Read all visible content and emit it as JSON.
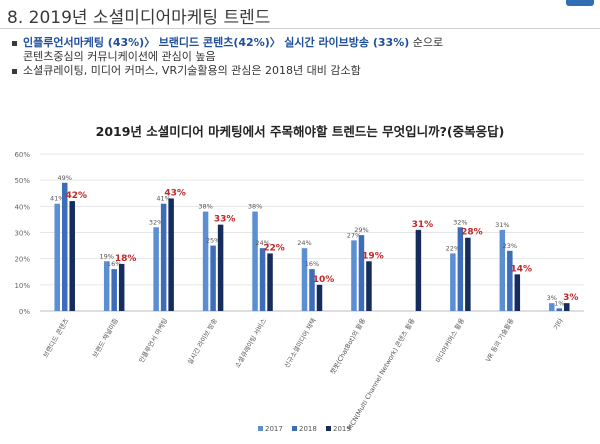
{
  "header": {
    "title": "8. 2019년 소셜미디어마케팅 트렌드"
  },
  "bullets": {
    "line1": {
      "p1": "인플루언서마케팅 (43%)",
      "s1": "〉",
      "p2": "브랜디드 콘텐츠(42%)",
      "s2": "〉",
      "p3": "실시간 라이브방송 (33%)",
      "tail": " 순으로"
    },
    "line1b": "콘텐츠중심의 커뮤니케이션에 관심이 높음",
    "line2": "소셜큐레이팅, 미디어 커머스, VR기술활용의 관심은 2018년 대비 감소함"
  },
  "chart_data": {
    "type": "bar",
    "title": "2019년 소셜미디어 마케팅에서 주목해야할 트렌드는 무엇입니까?(중복응답)",
    "categories": [
      "브랜디드 콘텐츠",
      "브랜드 채널미즘",
      "인플루언서 마케팅",
      "실시간 라이브 방송",
      "소셜큐레이팅 서비스",
      "신규소셜미디어 채택",
      "챗봇(ChatBot)의 활용",
      "MCN(Multi Channel Network) 콘텐츠 활용",
      "미디어커머스 활용",
      "VR 등의 기술활용",
      "기타"
    ],
    "series": [
      {
        "name": "2017",
        "color": "#5b8fd1",
        "values": [
          41,
          19,
          32,
          38,
          38,
          24,
          27,
          null,
          22,
          31,
          3
        ]
      },
      {
        "name": "2018",
        "color": "#3d6db8",
        "values": [
          49,
          16,
          41,
          25,
          24,
          16,
          29,
          null,
          32,
          23,
          1
        ]
      },
      {
        "name": "2019",
        "color": "#162c5c",
        "values": [
          42,
          18,
          43,
          33,
          22,
          10,
          19,
          31,
          28,
          14,
          3
        ]
      }
    ],
    "ylim": [
      0,
      60
    ],
    "yticks": [
      "0%",
      "10%",
      "20%",
      "30%",
      "40%",
      "50%",
      "60%"
    ],
    "grid": true,
    "legend_position": "bottom",
    "highlight_color": "#c0282b"
  }
}
